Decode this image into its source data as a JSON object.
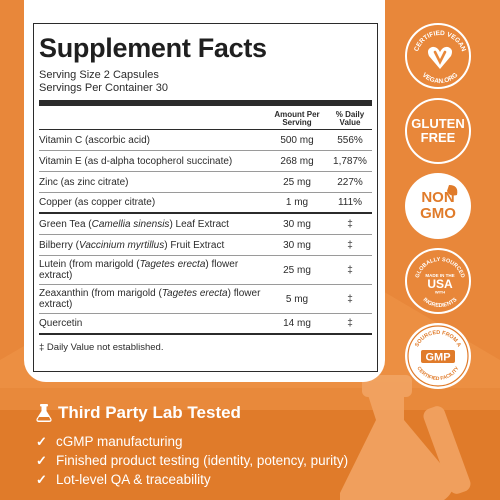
{
  "facts": {
    "title": "Supplement Facts",
    "serving_size": "Serving Size 2 Capsules",
    "servings_per_container": "Servings Per Container 30",
    "col_amount": "Amount Per Serving",
    "col_dv": "% Daily Value",
    "rows": [
      {
        "name": "Vitamin C (ascorbic acid)",
        "amount": "500 mg",
        "dv": "556%"
      },
      {
        "name": "Vitamin E (as d-alpha tocopherol succinate)",
        "amount": "268 mg",
        "dv": "1,787%"
      },
      {
        "name": "Zinc (as zinc citrate)",
        "amount": "25 mg",
        "dv": "227%"
      },
      {
        "name": "Copper (as copper citrate)",
        "amount": "1 mg",
        "dv": "111%"
      }
    ],
    "rows2": [
      {
        "pre": "Green Tea (",
        "ital": "Camellia sinensis",
        "post": ") Leaf Extract",
        "amount": "30 mg",
        "dv": "‡"
      },
      {
        "pre": "Bilberry (",
        "ital": "Vaccinium myrtillus",
        "post": ") Fruit Extract",
        "amount": "30 mg",
        "dv": "‡"
      },
      {
        "pre": "Lutein (from marigold (",
        "ital": "Tagetes erecta",
        "post": ") flower extract)",
        "amount": "25 mg",
        "dv": "‡"
      },
      {
        "pre": "Zeaxanthin (from marigold (",
        "ital": "Tagetes erecta",
        "post": ") flower extract)",
        "amount": "5 mg",
        "dv": "‡"
      },
      {
        "pre": "Quercetin",
        "ital": "",
        "post": "",
        "amount": "14 mg",
        "dv": "‡"
      }
    ],
    "footnote": "‡ Daily Value not established."
  },
  "badges": {
    "vegan_top": "CERTIFIED VEGAN",
    "vegan_bottom": "VEGAN.ORG",
    "gluten_line1": "GLUTEN",
    "gluten_line2": "FREE",
    "nongmo_line1": "NON",
    "nongmo_line2": "GMO",
    "usa_top": "GLOBALLY SOURCED",
    "usa_made": "MADE IN THE",
    "usa_big": "USA",
    "usa_with": "WITH",
    "usa_bottom": "INGREDIENTS",
    "gmp_top": "SOURCED FROM A",
    "gmp_big": "GMP",
    "gmp_bottom": "CERTIFIED FACILITY"
  },
  "bottom": {
    "heading": "Third Party Lab Tested",
    "bullets": [
      "cGMP manufacturing",
      "Finished product testing (identity, potency, purity)",
      "Lot-level QA & traceability"
    ]
  },
  "colors": {
    "background": "#E8873A",
    "accent": "#E07B2A",
    "text": "#2b2b2b"
  },
  "icons": [
    "vegan-heart-icon",
    "leaf-icon",
    "flask-icon",
    "check-icon"
  ]
}
